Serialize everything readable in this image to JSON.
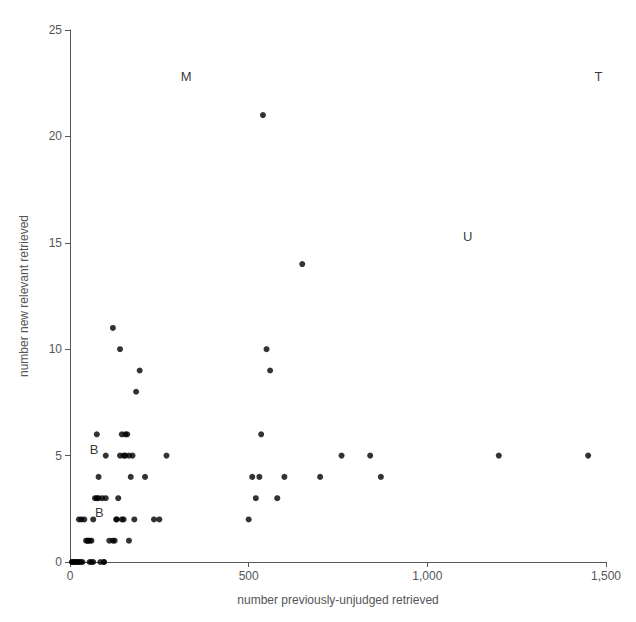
{
  "chart_data": {
    "type": "scatter",
    "title": "",
    "xlabel": "number previously-unjudged retrieved",
    "ylabel": "number new relevant retrieved",
    "x": [
      5,
      7,
      10,
      13,
      17,
      20,
      22,
      25,
      27,
      30,
      32,
      35,
      40,
      45,
      50,
      55,
      60,
      65,
      70,
      75,
      80,
      85,
      90,
      95,
      100,
      120,
      140,
      145,
      150,
      155,
      160,
      165,
      170,
      175,
      185,
      195,
      210,
      235,
      250,
      270,
      540,
      550,
      560,
      580,
      600,
      650,
      700,
      760,
      840,
      870,
      1200,
      1450,
      110,
      120,
      125,
      130,
      130,
      135,
      145,
      150,
      165,
      180,
      50,
      55,
      60,
      65,
      80,
      95,
      500,
      510,
      520,
      530,
      535,
      75,
      100,
      140,
      155
    ],
    "values": [
      0,
      0,
      0,
      0,
      0,
      0,
      0,
      2,
      0,
      0,
      2,
      0,
      2,
      1,
      1,
      1,
      0,
      2,
      3,
      3,
      4,
      0,
      3,
      0,
      3,
      11,
      10,
      6,
      5,
      5,
      6,
      5,
      4,
      5,
      8,
      9,
      4,
      2,
      2,
      5,
      21,
      10,
      9,
      3,
      4,
      14,
      4,
      5,
      5,
      4,
      5,
      5,
      1,
      1,
      1,
      2,
      2,
      3,
      2,
      2,
      1,
      2,
      1,
      0,
      1,
      0,
      3,
      0,
      2,
      4,
      3,
      4,
      6,
      6,
      5,
      5,
      6
    ],
    "color": "black",
    "xlim": [
      0,
      1500
    ],
    "ylim": [
      0,
      25
    ],
    "xticks": [
      0,
      500,
      1000,
      1500
    ],
    "yticks": [
      0,
      5,
      10,
      15,
      20,
      25
    ],
    "grid": false,
    "annotations": [
      {
        "text": "M",
        "x": 310,
        "y": 22.5,
        "align": "left"
      },
      {
        "text": "T",
        "x": 1490,
        "y": 22.5,
        "align": "right"
      },
      {
        "text": "U",
        "x": 1100,
        "y": 15.0,
        "align": "left"
      },
      {
        "text": "B",
        "x": 55,
        "y": 5.0,
        "align": "left"
      },
      {
        "text": "B",
        "x": 70,
        "y": 2.0,
        "align": "left"
      }
    ]
  }
}
